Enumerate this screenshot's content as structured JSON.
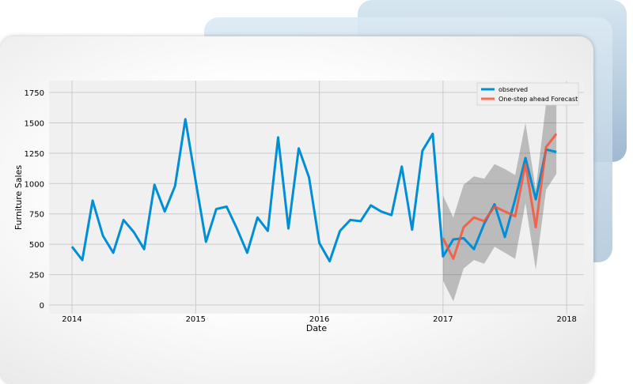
{
  "chart_data": {
    "type": "line",
    "title": "",
    "xlabel": "Date",
    "ylabel": "Furniture Sales",
    "ylim": [
      -50,
      1850
    ],
    "xlim": [
      2013.85,
      2018.2
    ],
    "yticks": [
      0,
      250,
      500,
      750,
      1000,
      1250,
      1500,
      1750
    ],
    "xticks": [
      "2014",
      "2015",
      "2016",
      "2017",
      "2018"
    ],
    "grid": true,
    "legend": "top-right",
    "series": [
      {
        "name": "observed",
        "color": "#008fd5",
        "start": 2014,
        "values": [
          480,
          370,
          860,
          570,
          430,
          700,
          600,
          460,
          990,
          770,
          980,
          1530,
          1020,
          520,
          790,
          810,
          630,
          430,
          720,
          610,
          1380,
          630,
          1290,
          1050,
          510,
          360,
          610,
          700,
          690,
          820,
          770,
          740,
          1140,
          620,
          1270,
          1410,
          400,
          540,
          550,
          460,
          670,
          830,
          560,
          870,
          1210,
          870,
          1280,
          1260
        ]
      },
      {
        "name": "One-step ahead Forecast",
        "color": "#fc4f30",
        "start": 2017,
        "values": [
          550,
          380,
          640,
          720,
          690,
          810,
          770,
          730,
          1160,
          640,
          1300,
          1410
        ]
      }
    ],
    "confidence_interval": {
      "start": 2017,
      "lower": [
        200,
        30,
        300,
        370,
        340,
        480,
        430,
        380,
        840,
        290,
        950,
        1080
      ],
      "upper": [
        900,
        720,
        990,
        1060,
        1040,
        1160,
        1120,
        1070,
        1500,
        950,
        1660,
        1760
      ]
    }
  }
}
